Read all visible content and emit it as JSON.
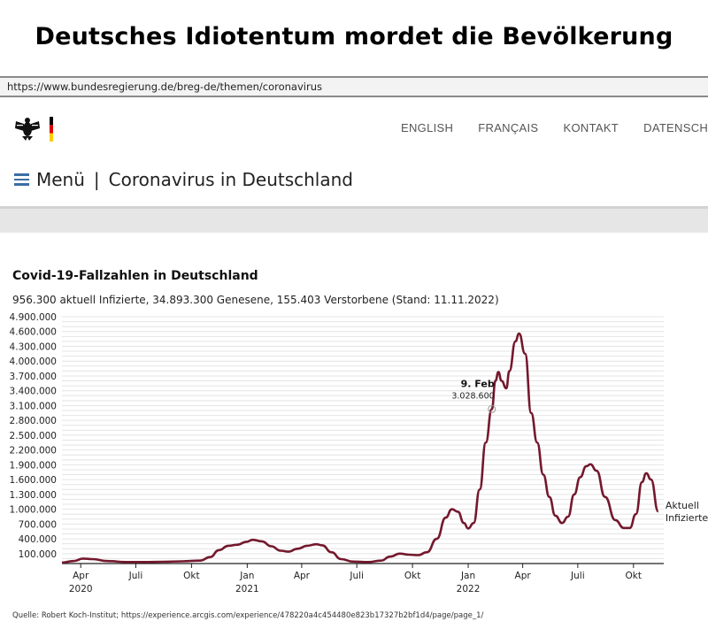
{
  "meme": {
    "title": "Deutsches Idiotentum mordet die Bevölkerung"
  },
  "browser": {
    "url": "https://www.bundesregierung.de/breg-de/themen/coronavirus"
  },
  "site": {
    "nav": [
      "ENGLISH",
      "FRANÇAIS",
      "KONTAKT",
      "DATENSCHUTZHINWEIS"
    ],
    "menu_label": "Menü",
    "separator": "|",
    "page_title": "Coronavirus in Deutschland"
  },
  "colors": {
    "line": "#74182d",
    "accent": "#3a6ea5",
    "flag_black": "#000000",
    "flag_red": "#dd0000",
    "flag_gold": "#ffcc00"
  },
  "chart_data": {
    "type": "line",
    "title": "Covid-19-Fallzahlen in Deutschland",
    "subtitle": "956.300 aktuell Infizierte, 34.893.300 Genesene, 155.403 Verstorbene (Stand: 11.11.2022)",
    "xlabel": "",
    "ylabel": "",
    "y_ticks": [
      100000,
      400000,
      700000,
      1000000,
      1300000,
      1600000,
      1900000,
      2200000,
      2500000,
      2800000,
      3100000,
      3400000,
      3700000,
      4000000,
      4300000,
      4600000,
      4900000
    ],
    "y_tick_labels": [
      "100.000",
      "400.000",
      "700.000",
      "1.000.000",
      "1.300.000",
      "1.600.000",
      "1.900.000",
      "2.200.000",
      "2.500.000",
      "2.800.000",
      "3.100.000",
      "3.400.000",
      "3.700.000",
      "4.000.000",
      "4.300.000",
      "4.600.000",
      "4.900.000"
    ],
    "ylim": [
      -100000,
      4900000
    ],
    "x_ticks": [
      {
        "date": "2020-04-01",
        "label": "Apr",
        "year": "2020"
      },
      {
        "date": "2020-07-01",
        "label": "Juli",
        "year": ""
      },
      {
        "date": "2020-10-01",
        "label": "Okt",
        "year": ""
      },
      {
        "date": "2021-01-01",
        "label": "Jan",
        "year": "2021"
      },
      {
        "date": "2021-04-01",
        "label": "Apr",
        "year": ""
      },
      {
        "date": "2021-07-01",
        "label": "Juli",
        "year": ""
      },
      {
        "date": "2021-10-01",
        "label": "Okt",
        "year": ""
      },
      {
        "date": "2022-01-01",
        "label": "Jan",
        "year": "2022"
      },
      {
        "date": "2022-04-01",
        "label": "Apr",
        "year": ""
      },
      {
        "date": "2022-07-01",
        "label": "Juli",
        "year": ""
      },
      {
        "date": "2022-10-01",
        "label": "Okt",
        "year": ""
      }
    ],
    "grid": true,
    "series": [
      {
        "name": "Aktuell Infizierte",
        "color": "#74182d",
        "points": [
          [
            "2020-03-01",
            -80000
          ],
          [
            "2020-03-20",
            -50000
          ],
          [
            "2020-04-05",
            0
          ],
          [
            "2020-04-20",
            -10000
          ],
          [
            "2020-05-15",
            -50000
          ],
          [
            "2020-06-15",
            -70000
          ],
          [
            "2020-07-15",
            -70000
          ],
          [
            "2020-08-15",
            -65000
          ],
          [
            "2020-09-15",
            -55000
          ],
          [
            "2020-10-15",
            -40000
          ],
          [
            "2020-11-01",
            30000
          ],
          [
            "2020-11-15",
            170000
          ],
          [
            "2020-12-01",
            260000
          ],
          [
            "2020-12-15",
            280000
          ],
          [
            "2020-12-31",
            340000
          ],
          [
            "2021-01-10",
            380000
          ],
          [
            "2021-01-25",
            350000
          ],
          [
            "2021-02-10",
            250000
          ],
          [
            "2021-02-25",
            160000
          ],
          [
            "2021-03-10",
            140000
          ],
          [
            "2021-03-25",
            200000
          ],
          [
            "2021-04-10",
            260000
          ],
          [
            "2021-04-25",
            290000
          ],
          [
            "2021-05-05",
            270000
          ],
          [
            "2021-05-20",
            130000
          ],
          [
            "2021-06-05",
            -10000
          ],
          [
            "2021-06-25",
            -60000
          ],
          [
            "2021-07-20",
            -70000
          ],
          [
            "2021-08-10",
            -40000
          ],
          [
            "2021-08-25",
            40000
          ],
          [
            "2021-09-10",
            100000
          ],
          [
            "2021-09-25",
            80000
          ],
          [
            "2021-10-10",
            70000
          ],
          [
            "2021-10-25",
            130000
          ],
          [
            "2021-11-10",
            400000
          ],
          [
            "2021-11-25",
            830000
          ],
          [
            "2021-12-05",
            1000000
          ],
          [
            "2021-12-15",
            950000
          ],
          [
            "2021-12-25",
            720000
          ],
          [
            "2022-01-01",
            610000
          ],
          [
            "2022-01-10",
            720000
          ],
          [
            "2022-01-20",
            1400000
          ],
          [
            "2022-01-30",
            2350000
          ],
          [
            "2022-02-09",
            3028600
          ],
          [
            "2022-02-15",
            3600000
          ],
          [
            "2022-02-20",
            3780000
          ],
          [
            "2022-02-25",
            3600000
          ],
          [
            "2022-03-05",
            3450000
          ],
          [
            "2022-03-10",
            3800000
          ],
          [
            "2022-03-20",
            4400000
          ],
          [
            "2022-03-26",
            4560000
          ],
          [
            "2022-04-05",
            4150000
          ],
          [
            "2022-04-15",
            2950000
          ],
          [
            "2022-04-25",
            2350000
          ],
          [
            "2022-05-05",
            1700000
          ],
          [
            "2022-05-15",
            1250000
          ],
          [
            "2022-05-25",
            870000
          ],
          [
            "2022-06-05",
            720000
          ],
          [
            "2022-06-15",
            850000
          ],
          [
            "2022-06-25",
            1300000
          ],
          [
            "2022-07-05",
            1650000
          ],
          [
            "2022-07-15",
            1870000
          ],
          [
            "2022-07-22",
            1910000
          ],
          [
            "2022-08-01",
            1780000
          ],
          [
            "2022-08-15",
            1250000
          ],
          [
            "2022-09-01",
            780000
          ],
          [
            "2022-09-15",
            620000
          ],
          [
            "2022-09-25",
            620000
          ],
          [
            "2022-10-05",
            900000
          ],
          [
            "2022-10-15",
            1550000
          ],
          [
            "2022-10-22",
            1730000
          ],
          [
            "2022-10-30",
            1600000
          ],
          [
            "2022-11-11",
            956300
          ]
        ]
      }
    ],
    "annotation": {
      "date": "2022-02-09",
      "value": 3028600,
      "title": "9. Feb",
      "text": "3.028.600"
    },
    "end_label": [
      "Aktuell",
      "Infizierte"
    ],
    "source": "Quelle: Robert Koch-Institut; https://experience.arcgis.com/experience/478220a4c454480e823b17327b2bf1d4/page/page_1/"
  }
}
